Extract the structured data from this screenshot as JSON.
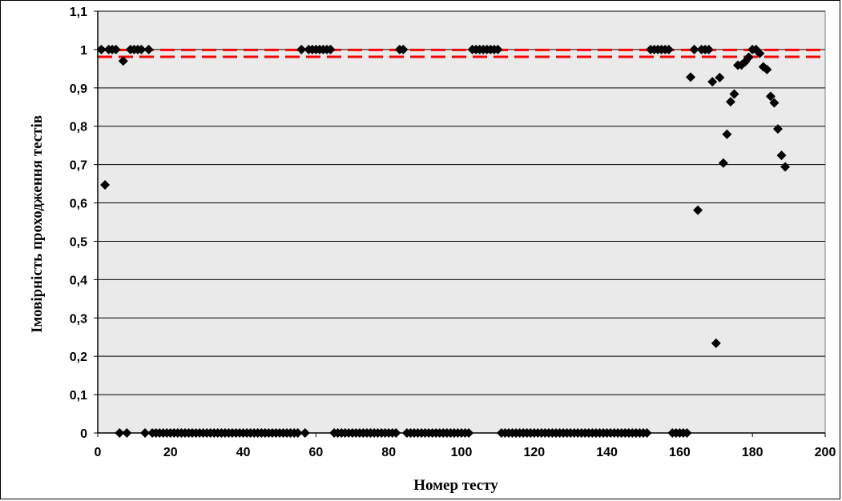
{
  "chart_data": {
    "type": "scatter",
    "title": "",
    "xlabel": "Номер тесту",
    "ylabel": "Імовірність проходження тестів",
    "xlim": [
      0,
      200
    ],
    "ylim": [
      0,
      1.1
    ],
    "x_ticks": [
      "0",
      "20",
      "40",
      "60",
      "80",
      "100",
      "120",
      "140",
      "160",
      "180",
      "200"
    ],
    "y_ticks": [
      "0",
      "0,1",
      "0,2",
      "0,3",
      "0,4",
      "0,5",
      "0,6",
      "0,7",
      "0,8",
      "0,9",
      "1",
      "1,1"
    ],
    "grid": "horizontal",
    "plot_background": "#eaeaea",
    "marker": "diamond",
    "marker_color": "#000000",
    "threshold_lines": {
      "color": "#ff0000",
      "style": "dashed",
      "values": [
        0.999,
        0.981
      ]
    },
    "series": [
      {
        "points": [
          [
            1,
            1
          ],
          [
            2,
            0.647
          ],
          [
            3,
            1
          ],
          [
            4,
            1
          ],
          [
            5,
            1
          ],
          [
            6,
            0
          ],
          [
            7,
            0.97
          ],
          [
            8,
            0
          ],
          [
            9,
            1
          ],
          [
            10,
            1
          ],
          [
            11,
            1
          ],
          [
            12,
            1
          ],
          [
            13,
            0
          ],
          [
            14,
            1
          ],
          [
            15,
            0
          ],
          [
            16,
            0
          ],
          [
            17,
            0
          ],
          [
            18,
            0
          ],
          [
            19,
            0
          ],
          [
            20,
            0
          ],
          [
            21,
            0
          ],
          [
            22,
            0
          ],
          [
            23,
            0
          ],
          [
            24,
            0
          ],
          [
            25,
            0
          ],
          [
            26,
            0
          ],
          [
            27,
            0
          ],
          [
            28,
            0
          ],
          [
            29,
            0
          ],
          [
            30,
            0
          ],
          [
            31,
            0
          ],
          [
            32,
            0
          ],
          [
            33,
            0
          ],
          [
            34,
            0
          ],
          [
            35,
            0
          ],
          [
            36,
            0
          ],
          [
            37,
            0
          ],
          [
            38,
            0
          ],
          [
            39,
            0
          ],
          [
            40,
            0
          ],
          [
            41,
            0
          ],
          [
            42,
            0
          ],
          [
            43,
            0
          ],
          [
            44,
            0
          ],
          [
            45,
            0
          ],
          [
            46,
            0
          ],
          [
            47,
            0
          ],
          [
            48,
            0
          ],
          [
            49,
            0
          ],
          [
            50,
            0
          ],
          [
            51,
            0
          ],
          [
            52,
            0
          ],
          [
            53,
            0
          ],
          [
            54,
            0
          ],
          [
            55,
            0
          ],
          [
            56,
            1
          ],
          [
            57,
            0
          ],
          [
            58,
            1
          ],
          [
            59,
            1
          ],
          [
            60,
            1
          ],
          [
            61,
            1
          ],
          [
            62,
            1
          ],
          [
            63,
            1
          ],
          [
            64,
            1
          ],
          [
            65,
            0
          ],
          [
            66,
            0
          ],
          [
            67,
            0
          ],
          [
            68,
            0
          ],
          [
            69,
            0
          ],
          [
            70,
            0
          ],
          [
            71,
            0
          ],
          [
            72,
            0
          ],
          [
            73,
            0
          ],
          [
            74,
            0
          ],
          [
            75,
            0
          ],
          [
            76,
            0
          ],
          [
            77,
            0
          ],
          [
            78,
            0
          ],
          [
            79,
            0
          ],
          [
            80,
            0
          ],
          [
            81,
            0
          ],
          [
            82,
            0
          ],
          [
            83,
            1
          ],
          [
            84,
            1
          ],
          [
            85,
            0
          ],
          [
            86,
            0
          ],
          [
            87,
            0
          ],
          [
            88,
            0
          ],
          [
            89,
            0
          ],
          [
            90,
            0
          ],
          [
            91,
            0
          ],
          [
            92,
            0
          ],
          [
            93,
            0
          ],
          [
            94,
            0
          ],
          [
            95,
            0
          ],
          [
            96,
            0
          ],
          [
            97,
            0
          ],
          [
            98,
            0
          ],
          [
            99,
            0
          ],
          [
            100,
            0
          ],
          [
            101,
            0
          ],
          [
            102,
            0
          ],
          [
            103,
            1
          ],
          [
            104,
            1
          ],
          [
            105,
            1
          ],
          [
            106,
            1
          ],
          [
            107,
            1
          ],
          [
            108,
            1
          ],
          [
            109,
            1
          ],
          [
            110,
            1
          ],
          [
            111,
            0
          ],
          [
            112,
            0
          ],
          [
            113,
            0
          ],
          [
            114,
            0
          ],
          [
            115,
            0
          ],
          [
            116,
            0
          ],
          [
            117,
            0
          ],
          [
            118,
            0
          ],
          [
            119,
            0
          ],
          [
            120,
            0
          ],
          [
            121,
            0
          ],
          [
            122,
            0
          ],
          [
            123,
            0
          ],
          [
            124,
            0
          ],
          [
            125,
            0
          ],
          [
            126,
            0
          ],
          [
            127,
            0
          ],
          [
            128,
            0
          ],
          [
            129,
            0
          ],
          [
            130,
            0
          ],
          [
            131,
            0
          ],
          [
            132,
            0
          ],
          [
            133,
            0
          ],
          [
            134,
            0
          ],
          [
            135,
            0
          ],
          [
            136,
            0
          ],
          [
            137,
            0
          ],
          [
            138,
            0
          ],
          [
            139,
            0
          ],
          [
            140,
            0
          ],
          [
            141,
            0
          ],
          [
            142,
            0
          ],
          [
            143,
            0
          ],
          [
            144,
            0
          ],
          [
            145,
            0
          ],
          [
            146,
            0
          ],
          [
            147,
            0
          ],
          [
            148,
            0
          ],
          [
            149,
            0
          ],
          [
            150,
            0
          ],
          [
            151,
            0
          ],
          [
            152,
            1
          ],
          [
            153,
            1
          ],
          [
            154,
            1
          ],
          [
            155,
            1
          ],
          [
            156,
            1
          ],
          [
            157,
            1
          ],
          [
            158,
            0
          ],
          [
            159,
            0
          ],
          [
            160,
            0
          ],
          [
            161,
            0
          ],
          [
            162,
            0
          ],
          [
            163,
            0.928
          ],
          [
            164,
            1
          ],
          [
            165,
            0.581
          ],
          [
            166,
            1
          ],
          [
            167,
            1
          ],
          [
            168,
            1
          ],
          [
            169,
            0.916
          ],
          [
            170,
            0.234
          ],
          [
            171,
            0.927
          ],
          [
            172,
            0.704
          ],
          [
            173,
            0.779
          ],
          [
            174,
            0.864
          ],
          [
            175,
            0.884
          ],
          [
            176,
            0.959
          ],
          [
            177,
            0.96
          ],
          [
            178,
            0.968
          ],
          [
            179,
            0.98
          ],
          [
            180,
            1
          ],
          [
            181,
            1
          ],
          [
            182,
            0.99
          ],
          [
            183,
            0.955
          ],
          [
            184,
            0.948
          ],
          [
            185,
            0.878
          ],
          [
            186,
            0.861
          ],
          [
            187,
            0.793
          ],
          [
            188,
            0.724
          ],
          [
            189,
            0.694
          ]
        ]
      }
    ]
  }
}
